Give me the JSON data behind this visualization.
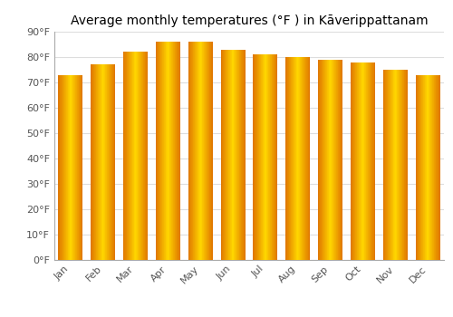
{
  "title": "Average monthly temperatures (°F ) in Kāverippattanam",
  "months": [
    "Jan",
    "Feb",
    "Mar",
    "Apr",
    "May",
    "Jun",
    "Jul",
    "Aug",
    "Sep",
    "Oct",
    "Nov",
    "Dec"
  ],
  "values": [
    73,
    77,
    82,
    86,
    86,
    83,
    81,
    80,
    79,
    78,
    75,
    73
  ],
  "bar_color_main": "#FFA500",
  "bar_color_light": "#FFD700",
  "bar_color_dark": "#E07800",
  "background_color": "#FFFFFF",
  "plot_bg_color": "#FFFFFF",
  "grid_color": "#DDDDDD",
  "ylim": [
    0,
    90
  ],
  "yticks": [
    0,
    10,
    20,
    30,
    40,
    50,
    60,
    70,
    80,
    90
  ],
  "ytick_labels": [
    "0°F",
    "10°F",
    "20°F",
    "30°F",
    "40°F",
    "50°F",
    "60°F",
    "70°F",
    "80°F",
    "90°F"
  ],
  "title_fontsize": 10,
  "tick_fontsize": 8,
  "bar_width": 0.75
}
